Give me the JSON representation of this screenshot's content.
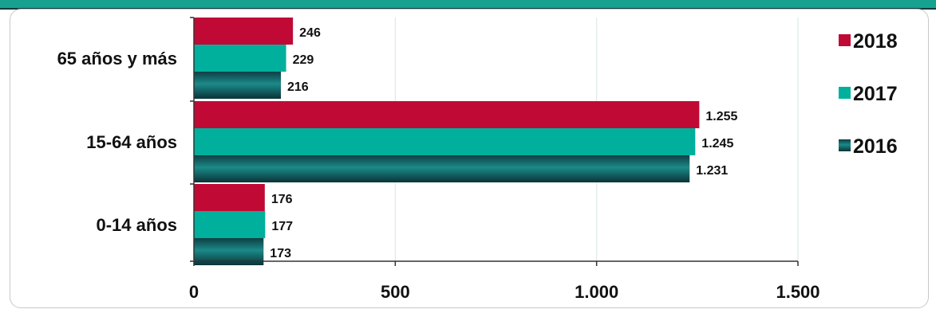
{
  "chart_data": {
    "type": "bar",
    "orientation": "horizontal",
    "categories": [
      "65 años y más",
      "15-64 años",
      "0-14 años"
    ],
    "series": [
      {
        "name": "2018",
        "color": "#c00a35",
        "values": [
          246,
          1255,
          176
        ],
        "labels": [
          "246",
          "1.255",
          "176"
        ]
      },
      {
        "name": "2017",
        "color": "#00b09c",
        "values": [
          229,
          1245,
          177
        ],
        "labels": [
          "229",
          "1.245",
          "177"
        ]
      },
      {
        "name": "2016",
        "color": "#0b5257",
        "values": [
          216,
          1231,
          173
        ],
        "labels": [
          "216",
          "1.231",
          "173"
        ]
      }
    ],
    "xlim": [
      0,
      1500
    ],
    "xticks": [
      0,
      500,
      1000,
      1500
    ],
    "xtick_labels": [
      "0",
      "500",
      "1.000",
      "1.500"
    ],
    "grid": true,
    "legend_position": "right"
  }
}
